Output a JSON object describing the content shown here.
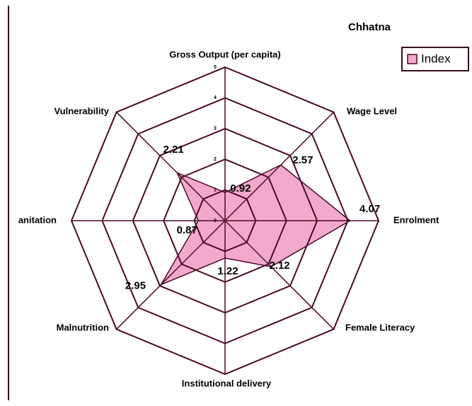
{
  "chart_data": {
    "type": "radar",
    "title": "Chhatna",
    "categories": [
      "Gross Output (per capita)",
      "Wage Level",
      "Enrolment",
      "Female Literacy",
      "Institutional delivery",
      "Malnutrition",
      "anitation",
      "Vulnerability"
    ],
    "series": [
      {
        "name": "Index",
        "color": "#f2a9cb",
        "values": [
          0.92,
          2.57,
          4.07,
          2.12,
          1.22,
          2.95,
          0.87,
          2.21
        ]
      }
    ],
    "rlim": [
      0,
      5
    ],
    "rticks": [
      0,
      1,
      2,
      3,
      4,
      5
    ],
    "grid": true,
    "legend": "upper right"
  }
}
